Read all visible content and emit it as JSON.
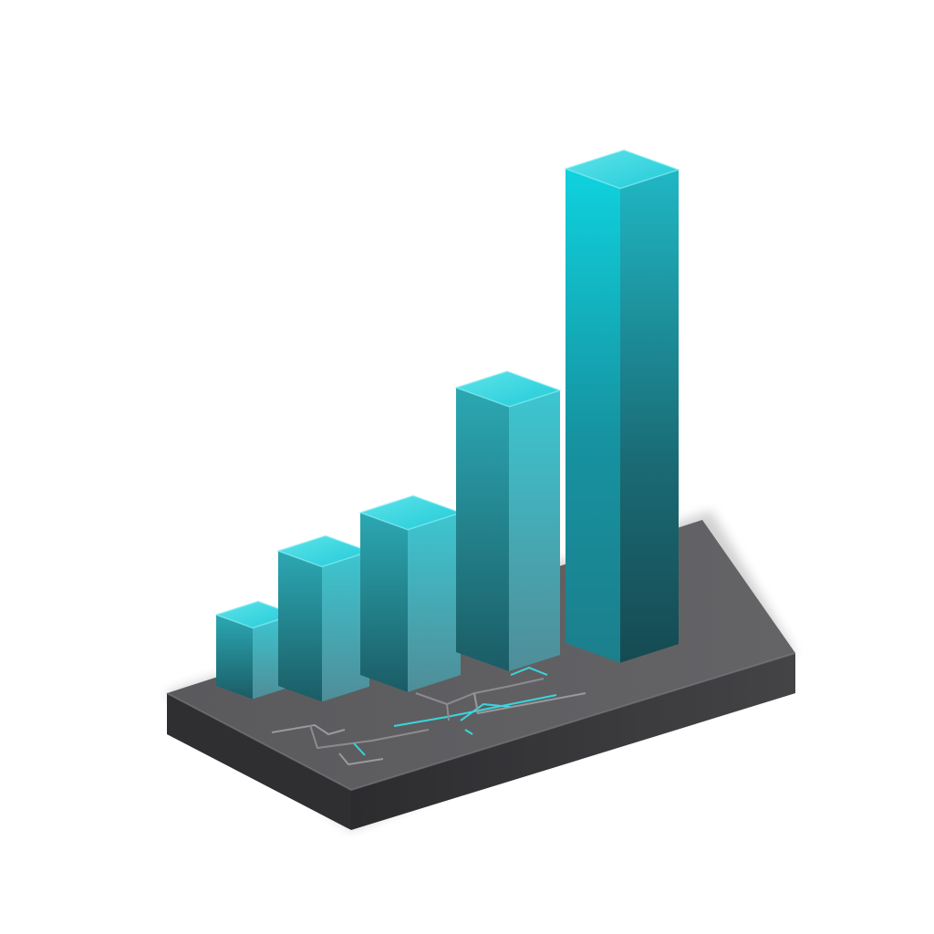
{
  "illustration": {
    "subject": "bar-chart-3d-icon",
    "background_color": "#ffffff",
    "colors": {
      "bar_top_light": "#5ee3ea",
      "bar_top_dark": "#22c4d2",
      "bar_front_light": "#4fc3cc",
      "bar_front_dark": "#174d55",
      "bar_side_light": "#2aa9b5",
      "bar_side_dark": "#1a5a63",
      "base_top": "#5b5b5e",
      "base_front": "#3c3c3f",
      "base_side": "#2b2b2e",
      "circuit_cyan": "#38d6df",
      "circuit_gray": "#8c8c90"
    }
  },
  "chart_data": {
    "type": "bar",
    "categories": [
      "",
      "",
      "",
      "",
      ""
    ],
    "values": [
      1,
      2,
      3,
      4,
      7
    ]
  }
}
